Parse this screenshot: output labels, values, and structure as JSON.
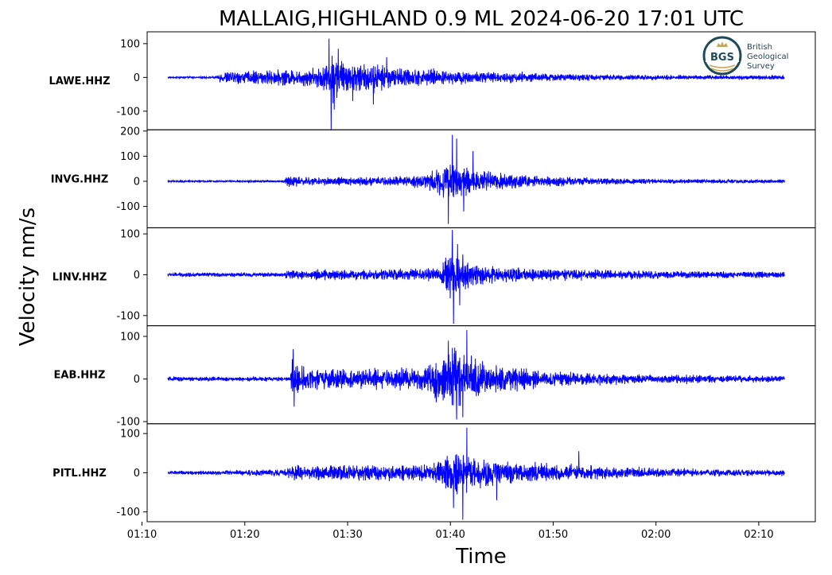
{
  "chart_data": {
    "type": "line",
    "title": "MALLAIG,HIGHLAND 0.9 ML   2024-06-20 17:01 UTC",
    "xlabel": "Time",
    "ylabel": "Velocity nm/s",
    "x_start_min": 72.5,
    "x_end_min": 132.5,
    "xlim_min": [
      70.5,
      135.5
    ],
    "xticks": [
      {
        "min": 70,
        "label": "01:10"
      },
      {
        "min": 80,
        "label": "01:20"
      },
      {
        "min": 90,
        "label": "01:30"
      },
      {
        "min": 100,
        "label": "01:40"
      },
      {
        "min": 110,
        "label": "01:50"
      },
      {
        "min": 120,
        "label": "02:00"
      },
      {
        "min": 130,
        "label": "02:10"
      }
    ],
    "line_color": "#0000ff",
    "grid": false,
    "logo": {
      "initials": "BGS",
      "lines": [
        "British",
        "Geological",
        "Survey"
      ]
    },
    "series": [
      {
        "name": "LAWE.HHZ",
        "ylim": [
          -155,
          135
        ],
        "yticks": [
          {
            "v": 100,
            "label": "100"
          },
          {
            "v": 0,
            "label": "0"
          },
          {
            "v": -100,
            "label": "-100"
          }
        ],
        "noise": 4,
        "envelope": [
          [
            72.5,
            4
          ],
          [
            77.3,
            4
          ],
          [
            77.5,
            22
          ],
          [
            79,
            26
          ],
          [
            83,
            30
          ],
          [
            86,
            35
          ],
          [
            88,
            50
          ],
          [
            88.3,
            110
          ],
          [
            89,
            85
          ],
          [
            90,
            60
          ],
          [
            92,
            60
          ],
          [
            94,
            42
          ],
          [
            98,
            32
          ],
          [
            103,
            24
          ],
          [
            110,
            16
          ],
          [
            120,
            10
          ],
          [
            132.5,
            8
          ]
        ],
        "spikes": [
          [
            88.2,
            115
          ],
          [
            88.4,
            -155
          ],
          [
            88.7,
            -95
          ],
          [
            89.1,
            85
          ],
          [
            90.5,
            -70
          ],
          [
            92.5,
            -80
          ],
          [
            93.8,
            60
          ]
        ]
      },
      {
        "name": "INVG.HHZ",
        "ylim": [
          -185,
          205
        ],
        "yticks": [
          {
            "v": 200,
            "label": "200"
          },
          {
            "v": 100,
            "label": "100"
          },
          {
            "v": 0,
            "label": "0"
          },
          {
            "v": -100,
            "label": "-100"
          }
        ],
        "noise": 5,
        "envelope": [
          [
            72.5,
            5
          ],
          [
            83.8,
            6
          ],
          [
            84,
            30
          ],
          [
            86,
            24
          ],
          [
            90,
            22
          ],
          [
            95,
            25
          ],
          [
            97.5,
            40
          ],
          [
            99.5,
            100
          ],
          [
            101,
            75
          ],
          [
            103,
            55
          ],
          [
            106,
            38
          ],
          [
            110,
            26
          ],
          [
            115,
            18
          ],
          [
            120,
            12
          ],
          [
            132.5,
            10
          ]
        ],
        "spikes": [
          [
            100.2,
            185
          ],
          [
            99.8,
            -170
          ],
          [
            100.6,
            170
          ],
          [
            101.3,
            -120
          ],
          [
            102.2,
            120
          ]
        ]
      },
      {
        "name": "LINV.HHZ",
        "ylim": [
          -125,
          115
        ],
        "yticks": [
          {
            "v": 100,
            "label": "100"
          },
          {
            "v": 0,
            "label": "0"
          },
          {
            "v": -100,
            "label": "-100"
          }
        ],
        "noise": 6,
        "envelope": [
          [
            72.5,
            7
          ],
          [
            83.8,
            7
          ],
          [
            84,
            16
          ],
          [
            90,
            17
          ],
          [
            95,
            18
          ],
          [
            99,
            22
          ],
          [
            100.2,
            95
          ],
          [
            101.5,
            45
          ],
          [
            103,
            30
          ],
          [
            107,
            22
          ],
          [
            115,
            16
          ],
          [
            125,
            12
          ],
          [
            132.5,
            10
          ]
        ],
        "spikes": [
          [
            100.2,
            110
          ],
          [
            100.3,
            -120
          ],
          [
            100.7,
            75
          ],
          [
            100.9,
            -75
          ],
          [
            101.2,
            50
          ]
        ]
      },
      {
        "name": "EAB.HHZ",
        "ylim": [
          -105,
          125
        ],
        "yticks": [
          {
            "v": 100,
            "label": "100"
          },
          {
            "v": 0,
            "label": "0"
          },
          {
            "v": -100,
            "label": "-100"
          }
        ],
        "noise": 5,
        "envelope": [
          [
            72.5,
            7
          ],
          [
            84.4,
            7
          ],
          [
            84.6,
            60
          ],
          [
            86,
            35
          ],
          [
            90,
            32
          ],
          [
            94,
            30
          ],
          [
            97,
            38
          ],
          [
            99,
            70
          ],
          [
            100.5,
            95
          ],
          [
            102,
            70
          ],
          [
            104,
            45
          ],
          [
            108,
            28
          ],
          [
            112,
            20
          ],
          [
            120,
            14
          ],
          [
            132.5,
            10
          ]
        ],
        "spikes": [
          [
            84.7,
            70
          ],
          [
            84.8,
            -65
          ],
          [
            99.8,
            90
          ],
          [
            100.6,
            -95
          ],
          [
            101.6,
            115
          ],
          [
            101.2,
            -90
          ]
        ]
      },
      {
        "name": "PITL.HHZ",
        "ylim": [
          -125,
          125
        ],
        "yticks": [
          {
            "v": 100,
            "label": "100"
          },
          {
            "v": 0,
            "label": "0"
          },
          {
            "v": -100,
            "label": "-100"
          }
        ],
        "noise": 5,
        "envelope": [
          [
            72.5,
            6
          ],
          [
            76,
            7
          ],
          [
            80,
            10
          ],
          [
            84,
            12
          ],
          [
            84.5,
            25
          ],
          [
            90,
            28
          ],
          [
            95,
            28
          ],
          [
            98,
            30
          ],
          [
            100.5,
            75
          ],
          [
            102,
            60
          ],
          [
            105,
            42
          ],
          [
            109,
            30
          ],
          [
            115,
            22
          ],
          [
            120,
            16
          ],
          [
            125,
            12
          ],
          [
            132.5,
            10
          ]
        ],
        "spikes": [
          [
            101.6,
            115
          ],
          [
            101.2,
            -120
          ],
          [
            100.3,
            -90
          ],
          [
            104.5,
            -70
          ],
          [
            112.5,
            55
          ]
        ]
      }
    ]
  }
}
